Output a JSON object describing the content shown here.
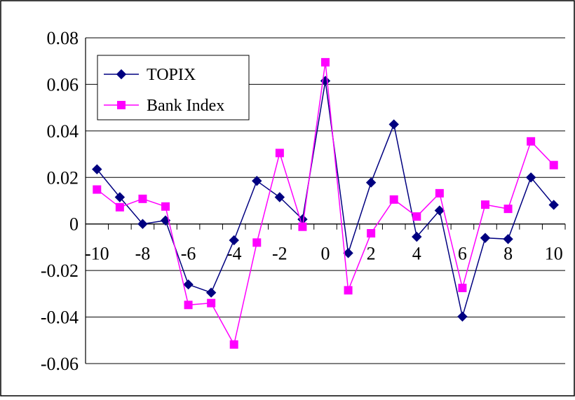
{
  "chart_data": {
    "type": "line",
    "title": "",
    "xlabel": "",
    "ylabel": "",
    "x": [
      -10,
      -9,
      -8,
      -7,
      -6,
      -5,
      -4,
      -3,
      -2,
      -1,
      0,
      1,
      2,
      3,
      4,
      5,
      6,
      7,
      8,
      9,
      10
    ],
    "xticks": [
      -10,
      -8,
      -6,
      -4,
      -2,
      0,
      2,
      4,
      6,
      8,
      10
    ],
    "xtick_labels": [
      "-10",
      "-8",
      "-6",
      "-4",
      "-2",
      "0",
      "2",
      "4",
      "6",
      "8",
      "10"
    ],
    "xlim": [
      -10.5,
      10.5
    ],
    "ylim": [
      -0.06,
      0.08
    ],
    "yticks": [
      -0.06,
      -0.04,
      -0.02,
      0,
      0.02,
      0.04,
      0.06,
      0.08
    ],
    "ytick_labels": [
      "-0.06",
      "-0.04",
      "-0.02",
      "0",
      "0.02",
      "0.04",
      "0.06",
      "0.08"
    ],
    "grid": "horizontal",
    "legend": "top-left",
    "series": [
      {
        "name": "TOPIX",
        "color": "#000080",
        "marker": "diamond",
        "values": [
          0.0235,
          0.0115,
          0.0,
          0.0015,
          -0.026,
          -0.0295,
          -0.007,
          0.0185,
          0.0115,
          0.002,
          0.0615,
          -0.0125,
          0.0178,
          0.0428,
          -0.0055,
          0.0058,
          -0.0398,
          -0.006,
          -0.0065,
          0.02,
          0.0082
        ]
      },
      {
        "name": "Bank Index",
        "color": "#FF00FF",
        "marker": "square",
        "values": [
          0.0148,
          0.0072,
          0.0108,
          0.0075,
          -0.0348,
          -0.034,
          -0.0518,
          -0.008,
          0.0305,
          -0.0012,
          0.0695,
          -0.0285,
          -0.004,
          0.0105,
          0.0032,
          0.0132,
          -0.0275,
          0.0083,
          0.0065,
          0.0355,
          0.0253
        ]
      }
    ]
  }
}
